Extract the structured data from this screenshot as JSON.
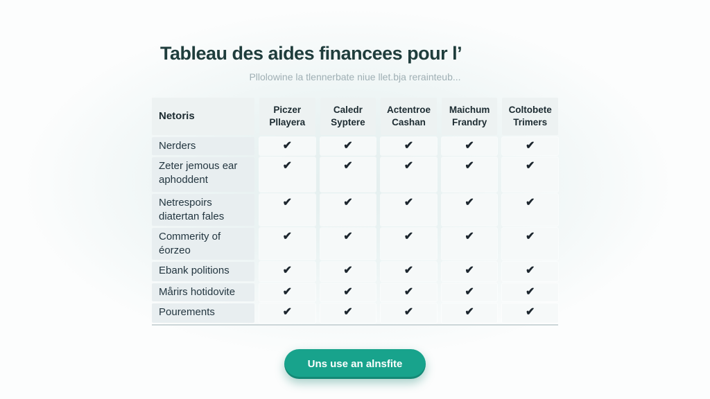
{
  "page": {
    "title": "Tableau des aides financees pour l’",
    "subtitle": "Pllolowine la tlennerbate niue llet.bja rerainteub...",
    "cta_label": "Uns use an alnsfite"
  },
  "table": {
    "check_glyph": "✔",
    "header": [
      "Netoris",
      "Piczer Pllayera",
      "Caledr Syptere",
      "Actentroe Cashan",
      "Maichum Frandry",
      "Coltobete Trimers"
    ],
    "rows": [
      {
        "label": "Nerders",
        "checks": [
          true,
          true,
          true,
          true,
          true
        ]
      },
      {
        "label": "Zeter jemous ear aphoddent",
        "checks": [
          true,
          true,
          true,
          true,
          true
        ]
      },
      {
        "label": "Netrespoirs diatertan fales",
        "checks": [
          true,
          true,
          true,
          true,
          true
        ]
      },
      {
        "label": "Commerity of éorzeo",
        "checks": [
          true,
          true,
          true,
          true,
          true
        ]
      },
      {
        "label": "Ebank politions",
        "checks": [
          true,
          true,
          true,
          true,
          true
        ]
      },
      {
        "label": "Mårirs hotidovite",
        "checks": [
          true,
          true,
          true,
          true,
          true
        ]
      },
      {
        "label": "Pourements",
        "checks": [
          true,
          true,
          true,
          true,
          true
        ]
      }
    ]
  },
  "colors": {
    "accent": "#18a38c",
    "title_text": "#1f3d3c",
    "subtitle_text": "#9fafb4",
    "check": "#1c262e",
    "header_bg": "#edf2f2",
    "label_bg": "#e8eef0",
    "cell_bg": "#f6f9f9",
    "table_bottom_border": "#ccd6d8"
  }
}
